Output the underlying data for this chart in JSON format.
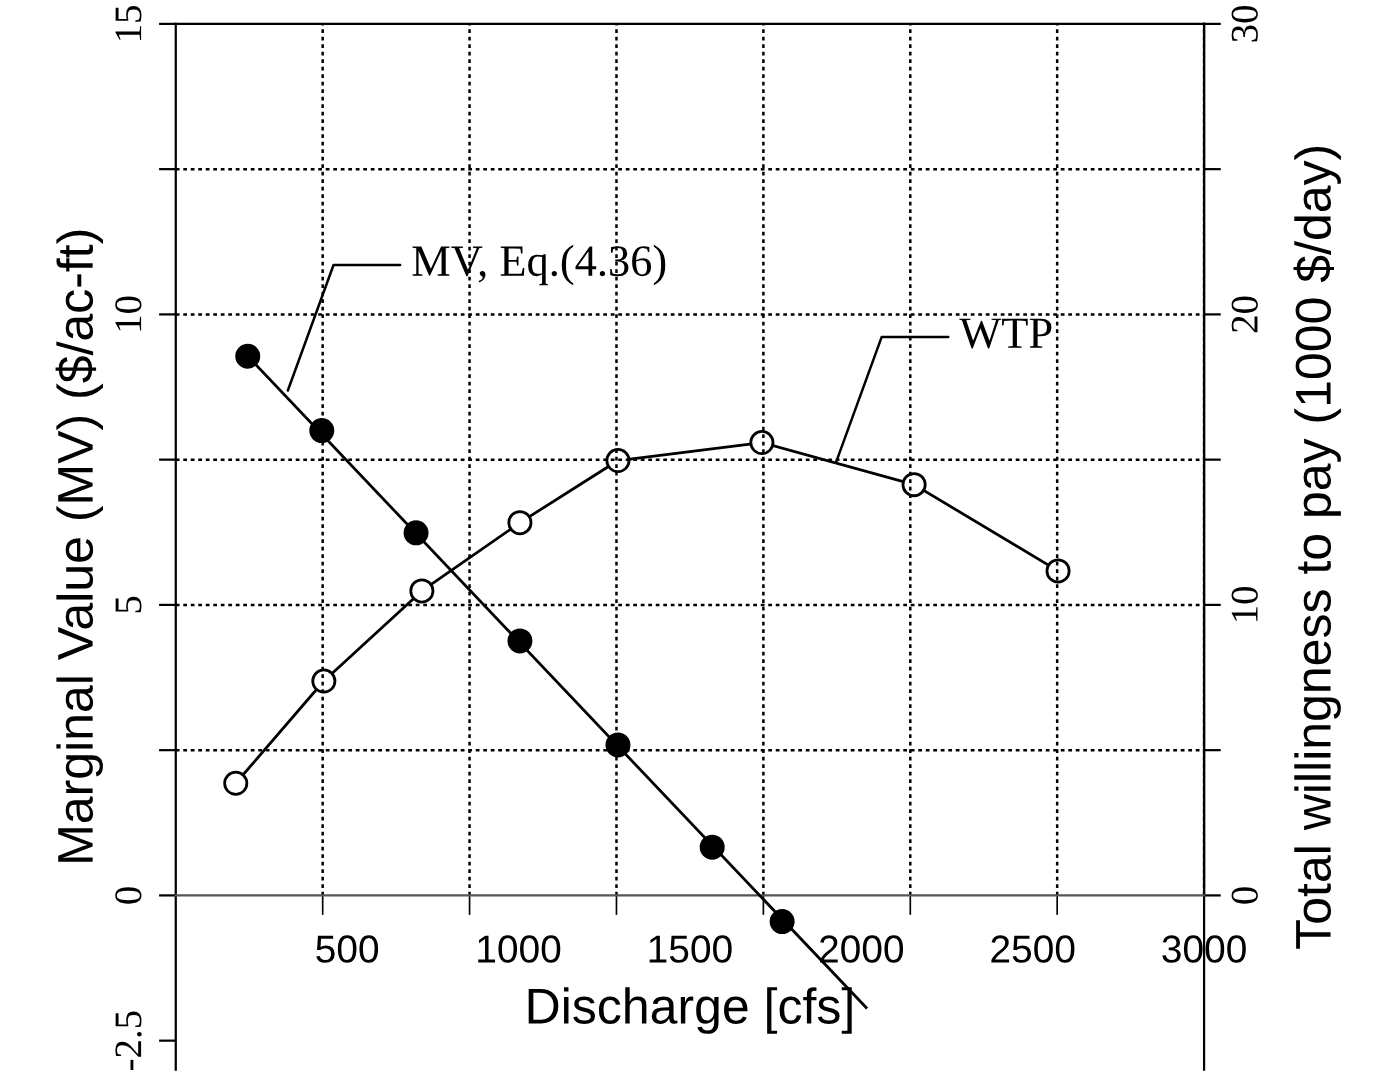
{
  "chart_data": {
    "type": "line",
    "xlabel": "Discharge [cfs]",
    "ylabel": "Marginal Value (MV) ($/ac-ft)",
    "y2label": "Total willingness to pay (1000 $/day)",
    "xlim": [
      0,
      3000
    ],
    "xticks": [
      {
        "value": 428.6,
        "label": null
      },
      {
        "value": 857.1,
        "label": null
      },
      {
        "value": 1285.7,
        "label": null
      },
      {
        "value": 1714.3,
        "label": null
      },
      {
        "value": 2142.9,
        "label": null
      },
      {
        "value": 2571.4,
        "label": null
      },
      {
        "value": 3000,
        "label": null
      },
      500,
      1000,
      1500,
      2000,
      2500,
      3000
    ],
    "ylim": [
      -3,
      15
    ],
    "yticks": [
      -2.5,
      0,
      {
        "value": 2.5,
        "label": null
      },
      5,
      {
        "value": 7.5,
        "label": null
      },
      10,
      {
        "value": 12.5,
        "label": null
      },
      15
    ],
    "y2lim": [
      -6,
      30
    ],
    "y2ticks": [
      0,
      {
        "value": 5,
        "label": null
      },
      10,
      {
        "value": 15,
        "label": null
      },
      20,
      {
        "value": 25,
        "label": null
      },
      30
    ],
    "grid": true,
    "legend": false,
    "series": [
      {
        "type": "scatter",
        "color": "#000000",
        "marker": "circle",
        "x": [
          210,
          426,
          701,
          1004,
          1290,
          1565,
          1769
        ],
        "values": [
          9.28,
          8.0,
          6.24,
          4.38,
          2.59,
          0.83,
          -0.45
        ]
      },
      {
        "color": "#000000",
        "marker": "none",
        "x": [
          210,
          2014
        ],
        "values": [
          9.28,
          -1.93
        ]
      },
      {
        "type": "line",
        "color": "#000000",
        "marker": "circle",
        "axis": "y2",
        "x": [
          175,
          432,
          718,
          1004,
          1290,
          1710,
          2154,
          2574
        ],
        "values": [
          3.86,
          7.38,
          10.48,
          12.83,
          14.97,
          15.59,
          14.14,
          11.17
        ]
      }
    ],
    "annotations": [
      {
        "text": "MV, Eq.(4.36)",
        "x": 327,
        "y": 8.69
      },
      {
        "text": "WTP",
        "x": 1926,
        "y": 7.45
      }
    ]
  }
}
